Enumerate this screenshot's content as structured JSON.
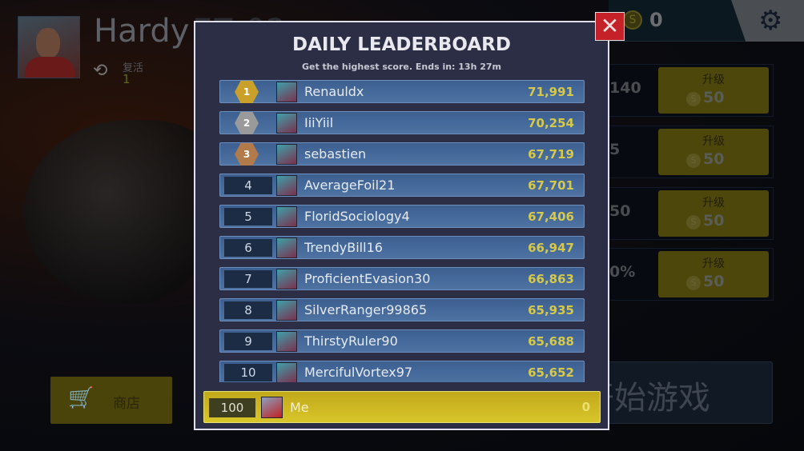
{
  "player": {
    "name": "Hardy",
    "car": "EZ-02",
    "revive_label": "复活",
    "revive_count": "1"
  },
  "topbar": {
    "coins": "0",
    "coin_symbol": "S",
    "settings_icon": "gear-icon"
  },
  "stats": [
    {
      "value": "140",
      "upgrade_label": "升级",
      "cost": "50"
    },
    {
      "value": "5",
      "upgrade_label": "升级",
      "cost": "50"
    },
    {
      "value": "50",
      "upgrade_label": "升级",
      "cost": "50"
    },
    {
      "value": "0%",
      "upgrade_label": "升级",
      "cost": "50"
    }
  ],
  "shop": {
    "label": "商店"
  },
  "start": {
    "label": "开始游戏"
  },
  "leaderboard": {
    "title": "DAILY LEADERBOARD",
    "subtitle": "Get the highest score. Ends in: 13h 27m",
    "close_symbol": "✕",
    "colors": {
      "gold": "#c9a02a",
      "silver": "#9a9a9a",
      "bronze": "#b07a4a",
      "score": "#d6c94a",
      "me_bar": "#d2be22"
    },
    "rows": [
      {
        "rank": "1",
        "name": "Renauldx",
        "score": "71,991"
      },
      {
        "rank": "2",
        "name": "IiiYiil",
        "score": "70,254"
      },
      {
        "rank": "3",
        "name": "sebastien",
        "score": "67,719"
      },
      {
        "rank": "4",
        "name": "AverageFoil21",
        "score": "67,701"
      },
      {
        "rank": "5",
        "name": "FloridSociology4",
        "score": "67,406"
      },
      {
        "rank": "6",
        "name": "TrendyBill16",
        "score": "66,947"
      },
      {
        "rank": "7",
        "name": "ProficientEvasion30",
        "score": "66,863"
      },
      {
        "rank": "8",
        "name": "SilverRanger99865",
        "score": "65,935"
      },
      {
        "rank": "9",
        "name": "ThirstyRuler90",
        "score": "65,688"
      },
      {
        "rank": "10",
        "name": "MercifulVortex97",
        "score": "65,652"
      }
    ],
    "me": {
      "rank": "100",
      "name": "Me",
      "score": "0"
    }
  }
}
